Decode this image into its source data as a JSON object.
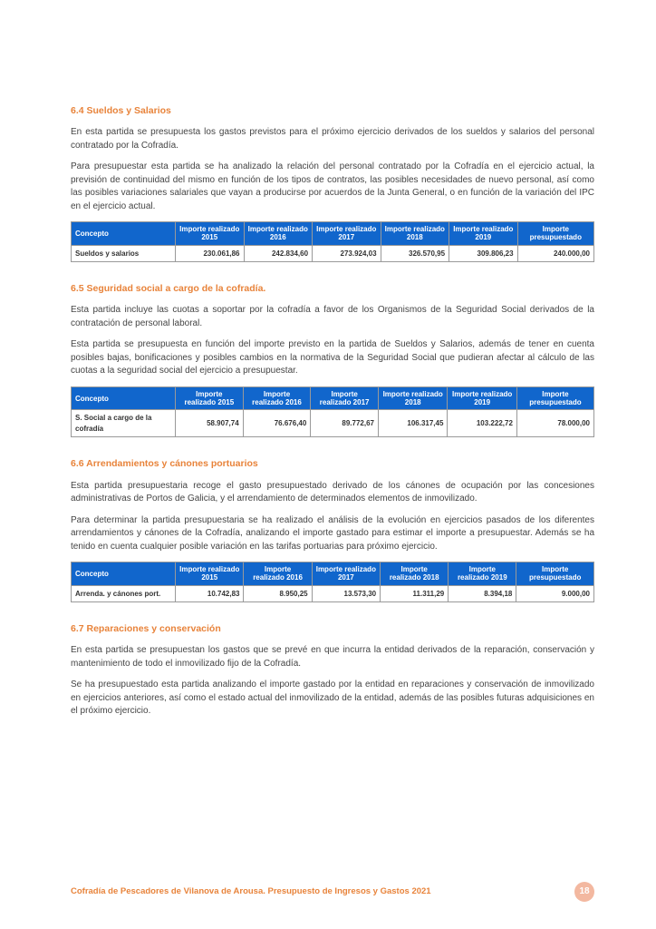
{
  "sections": [
    {
      "title": "6.4  Sueldos y Salarios",
      "paragraphs": [
        "En esta partida se presupuesta los gastos previstos para el próximo ejercicio derivados de los sueldos y salarios del personal contratado por la Cofradía.",
        "Para presupuestar esta partida se ha analizado la relación del personal contratado por la Cofradía en el ejercicio actual, la previsión de continuidad del mismo en función de los tipos de contratos, las posibles necesidades de nuevo personal, así como las posibles variaciones salariales que vayan a producirse por acuerdos de la Junta General, o en función de la variación del IPC en el ejercicio  actual."
      ],
      "table": {
        "headers": [
          "Concepto",
          "Importe realizado 2015",
          "Importe realizado 2016",
          "Importe realizado 2017",
          "Importe realizado 2018",
          "Importe realizado 2019",
          "Importe presupuestado"
        ],
        "row_label": "Sueldos y salarios",
        "values": [
          "230.061,86",
          "242.834,60",
          "273.924,03",
          "326.570,95",
          "309.806,23",
          "240.000,00"
        ]
      }
    },
    {
      "title": "6.5  Seguridad social a cargo de la cofradía.",
      "paragraphs": [
        "Esta partida incluye las cuotas a soportar por la cofradía a favor de los Organismos de la Seguridad Social derivados de la contratación de personal laboral.",
        "Esta partida se presupuesta en función del importe previsto en la partida de Sueldos y Salarios, además de tener en cuenta posibles bajas, bonificaciones y posibles cambios en la normativa de la Seguridad Social que pudieran afectar al cálculo de las cuotas a la seguridad social del ejercicio a presupuestar."
      ],
      "table": {
        "headers": [
          "Concepto",
          "Importe realizado 2015",
          "Importe realizado 2016",
          "Importe realizado 2017",
          "Importe realizado 2018",
          "Importe realizado 2019",
          "Importe presupuestado"
        ],
        "row_label": "S. Social a cargo de la cofradía",
        "values": [
          "58.907,74",
          "76.676,40",
          "89.772,67",
          "106.317,45",
          "103.222,72",
          "78.000,00"
        ]
      }
    },
    {
      "title": "6.6  Arrendamientos y cánones portuarios",
      "paragraphs": [
        "Esta partida presupuestaria recoge el gasto presupuestado derivado de los cánones de ocupación por las concesiones administrativas de Portos de Galicia, y el arrendamiento de determinados elementos de inmovilizado.",
        "Para determinar la partida presupuestaria se ha realizado el análisis de la evolución en ejercicios pasados de los diferentes arrendamientos y cánones de la Cofradía, analizando el importe gastado para estimar el importe a presupuestar. Además se ha tenido en cuenta cualquier posible variación en las tarifas portuarias para próximo ejercicio."
      ],
      "table": {
        "headers": [
          "Concepto",
          "Importe realizado 2015",
          "Importe realizado 2016",
          "Importe realizado 2017",
          "Importe realizado 2018",
          "Importe realizado 2019",
          "Importe presupuestado"
        ],
        "row_label": "Arrenda. y cánones port.",
        "values": [
          "10.742,83",
          "8.950,25",
          "13.573,30",
          "11.311,29",
          "8.394,18",
          "9.000,00"
        ]
      }
    },
    {
      "title": "6.7  Reparaciones y conservación",
      "paragraphs": [
        "En esta partida se presupuestan los gastos que se prevé en que incurra la entidad derivados de la reparación, conservación y mantenimiento de todo el inmovilizado fijo de la Cofradía.",
        "Se ha presupuestado esta partida analizando el importe gastado por la entidad en reparaciones y conservación de inmovilizado en ejercicios anteriores, así como el estado actual del inmovilizado de la entidad, además de las posibles futuras adquisiciones en el próximo ejercicio."
      ],
      "table": null
    }
  ],
  "footer": {
    "text": "Cofradía de Pescadores de Vilanova de Arousa. Presupuesto de Ingresos y Gastos 2021",
    "page": "18"
  },
  "colors": {
    "accent": "#e8833a",
    "table_header_bg": "#1166cc",
    "table_header_fg": "#ffffff",
    "border": "#999999",
    "page_badge_bg": "#f3b8a0"
  }
}
